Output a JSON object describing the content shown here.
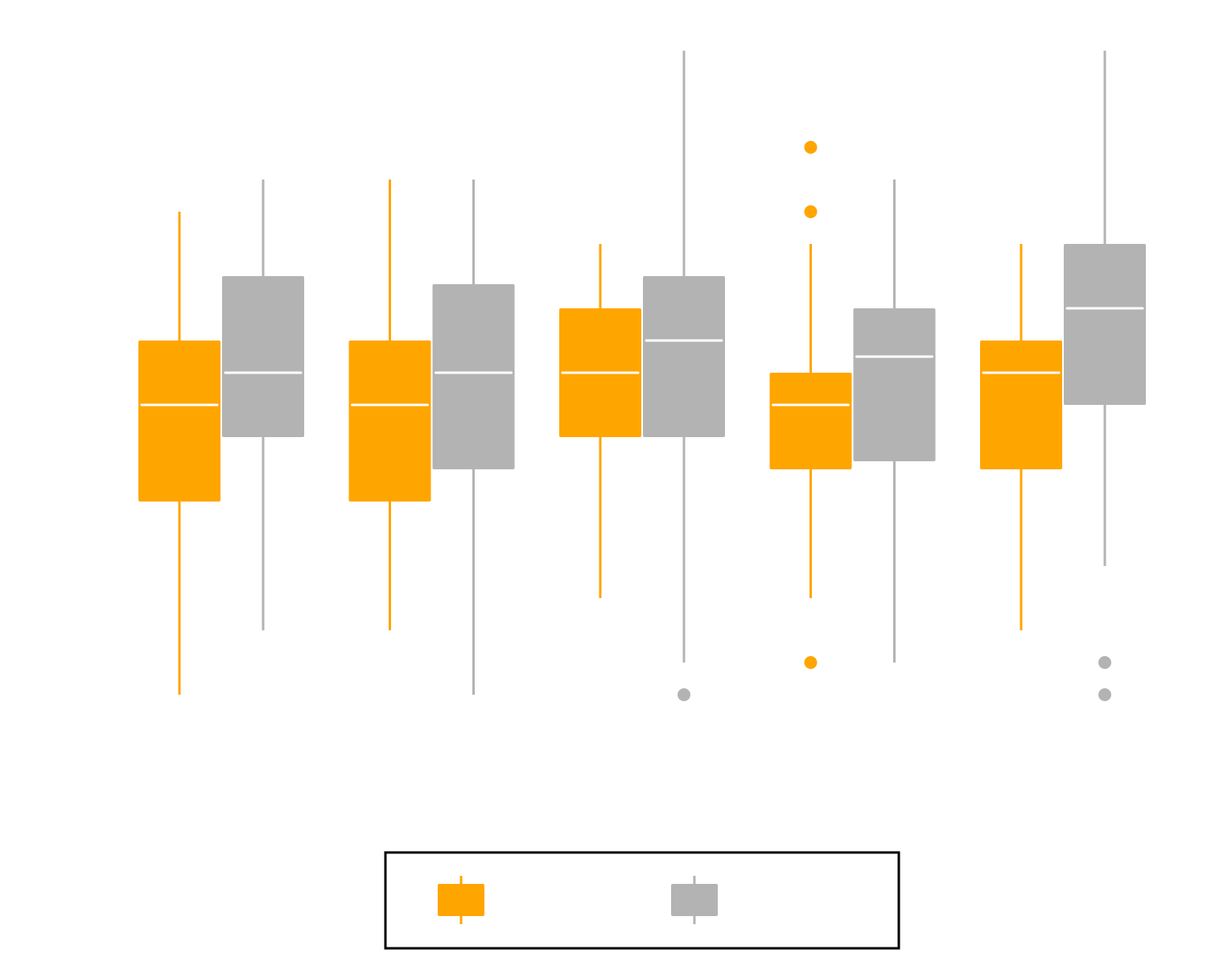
{
  "chart_data": {
    "type": "boxplot",
    "title": "",
    "xlabel": "",
    "ylabel": "",
    "ylim": [
      0,
      20
    ],
    "grid": false,
    "legend": {
      "placement": "bottom-center",
      "boxed": true,
      "entries": [
        {
          "name": "",
          "color": "#ffa500"
        },
        {
          "name": "",
          "color": "#b3b3b3"
        }
      ]
    },
    "groups": 5,
    "series": [
      {
        "name": "",
        "color": "#ffa500",
        "boxes": [
          {
            "whisker_low": 0,
            "q1": 6,
            "median": 9,
            "q3": 11,
            "whisker_high": 15,
            "outliers": []
          },
          {
            "whisker_low": 2,
            "q1": 6,
            "median": 9,
            "q3": 11,
            "whisker_high": 16,
            "outliers": []
          },
          {
            "whisker_low": 3,
            "q1": 8,
            "median": 10,
            "q3": 12,
            "whisker_high": 14,
            "outliers": []
          },
          {
            "whisker_low": 3,
            "q1": 7,
            "median": 9,
            "q3": 10,
            "whisker_high": 14,
            "outliers": [
              17,
              15,
              1
            ]
          },
          {
            "whisker_low": 2,
            "q1": 7,
            "median": 10,
            "q3": 11,
            "whisker_high": 14,
            "outliers": []
          }
        ]
      },
      {
        "name": "",
        "color": "#b3b3b3",
        "boxes": [
          {
            "whisker_low": 2,
            "q1": 8,
            "median": 10,
            "q3": 13,
            "whisker_high": 16,
            "outliers": []
          },
          {
            "whisker_low": 0,
            "q1": 7,
            "median": 10,
            "q3": 12.75,
            "whisker_high": 16,
            "outliers": []
          },
          {
            "whisker_low": 1,
            "q1": 8,
            "median": 11,
            "q3": 13,
            "whisker_high": 20,
            "outliers": [
              0
            ]
          },
          {
            "whisker_low": 1,
            "q1": 7.25,
            "median": 10.5,
            "q3": 12,
            "whisker_high": 16,
            "outliers": []
          },
          {
            "whisker_low": 4,
            "q1": 9,
            "median": 12,
            "q3": 14,
            "whisker_high": 20,
            "outliers": [
              1,
              0
            ]
          }
        ]
      }
    ]
  }
}
